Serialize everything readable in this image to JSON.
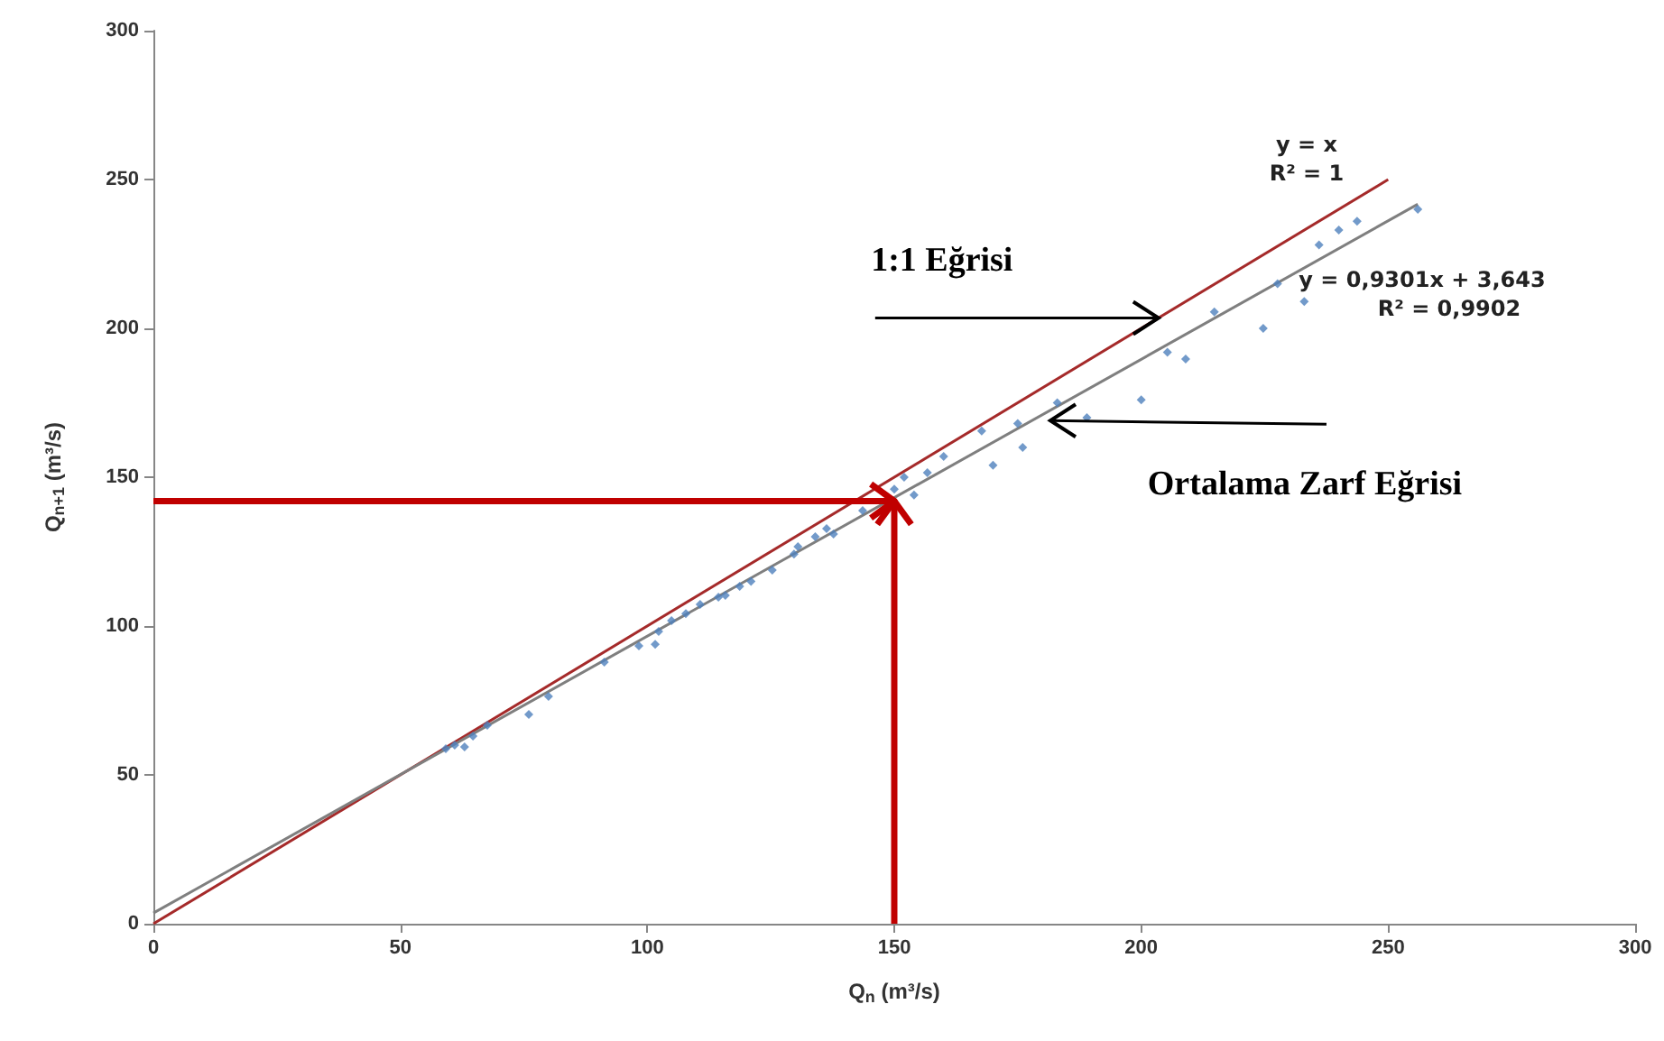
{
  "chart_data": {
    "type": "scatter",
    "xlabel": "Q$_{n}$ (m³/s)",
    "ylabel": "Q$_{n+1}$ (m³/s)",
    "xlim": [
      0,
      300
    ],
    "xticks": [
      0,
      50,
      100,
      150,
      200,
      250,
      300
    ],
    "ylim": [
      0,
      300
    ],
    "yticks": [
      0,
      50,
      100,
      150,
      200,
      250,
      300
    ],
    "grid": false,
    "marker": "diamond",
    "series": [
      {
        "color": "#4f81bd",
        "x": [
          59.2,
          61,
          63,
          64.7,
          67.6,
          76,
          80,
          91.3,
          98.3,
          101.6,
          102.3,
          104.9,
          107.8,
          110.7,
          114.4,
          115.8,
          118.7,
          121,
          125.3,
          129.7,
          130.5,
          134,
          136.3,
          137.7,
          143.6,
          147.2,
          150,
          152,
          154,
          156.7,
          160,
          167.7,
          170,
          175,
          176,
          183,
          189,
          200,
          205.3,
          209,
          214.8,
          224.7,
          227.6,
          233,
          236,
          240,
          243.7,
          256
        ],
        "values": [
          58.8,
          60,
          59.4,
          63,
          66.7,
          70.3,
          76.4,
          87.9,
          93.3,
          93.9,
          98.2,
          101.8,
          104.2,
          107.3,
          109.7,
          110.3,
          113.3,
          115,
          118.8,
          124.2,
          126.7,
          130,
          132.7,
          130.9,
          138.8,
          null,
          146,
          150,
          144,
          151.5,
          157,
          165.5,
          154,
          168,
          160,
          175,
          170,
          176,
          192,
          189.7,
          205.5,
          200,
          215,
          209,
          228,
          233,
          236,
          240
        ]
      },
      {
        "type": "line",
        "color": "#a52a2a",
        "marker": "none",
        "x": [
          0,
          250
        ],
        "values": [
          0,
          250
        ]
      },
      {
        "type": "line",
        "color": "#7f7f7f",
        "marker": "none",
        "x": [
          0,
          256
        ],
        "values": [
          3.6,
          241.7
        ]
      }
    ],
    "ref_lines": [
      {
        "axis": "y",
        "value": 142,
        "color": "#c00000"
      },
      {
        "axis": "x",
        "value": 150,
        "color": "#c00000"
      }
    ],
    "annotations": [
      {
        "text": "1:1 Eğrisi",
        "x": 203.5,
        "y": 203.5
      },
      {
        "text": "Ortalama Zarf Eğrisi",
        "x": 181.6,
        "y": 169
      },
      "y = x\nR² = 1",
      "y = 0,9301x + 3,643\nR² = 0,9902"
    ]
  }
}
